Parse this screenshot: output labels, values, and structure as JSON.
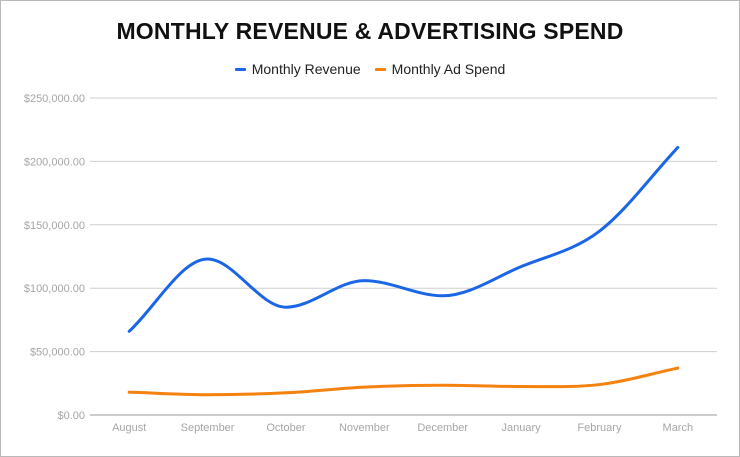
{
  "chart_data": {
    "type": "line",
    "title": "MONTHLY REVENUE & ADVERTISING SPEND",
    "categories": [
      "August",
      "September",
      "October",
      "November",
      "December",
      "January",
      "February",
      "March"
    ],
    "series": [
      {
        "name": "Monthly Revenue",
        "color": "#1a66e6",
        "values": [
          66000,
          123000,
          85000,
          106000,
          94000,
          117000,
          145000,
          211000
        ]
      },
      {
        "name": "Monthly Ad Spend",
        "color": "#f5820f",
        "values": [
          18000,
          16000,
          17500,
          22000,
          23500,
          22500,
          24000,
          37000
        ]
      }
    ],
    "ylim": [
      0,
      250000
    ],
    "yticks": [
      0,
      50000,
      100000,
      150000,
      200000,
      250000
    ],
    "ytick_labels": [
      "$0.00",
      "$50,000.00",
      "$100,000.00",
      "$150,000.00",
      "$200,000.00",
      "$250,000.00"
    ],
    "grid": true,
    "legend_position": "top-center"
  }
}
